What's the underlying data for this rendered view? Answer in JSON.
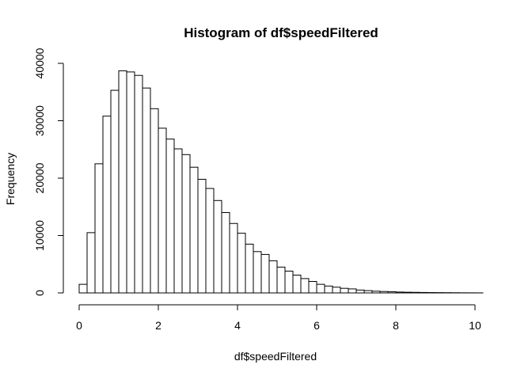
{
  "chart_data": {
    "type": "bar",
    "title": "Histogram of df$speedFiltered",
    "xlabel": "df$speedFiltered",
    "ylabel": "Frequency",
    "bin_width": 0.2,
    "bin_start": 0,
    "xlim": [
      0,
      10.2
    ],
    "ylim": [
      0,
      40000
    ],
    "x_ticks": [
      0,
      2,
      4,
      6,
      8,
      10
    ],
    "y_ticks": [
      0,
      10000,
      20000,
      30000,
      40000
    ],
    "values": [
      1500,
      10500,
      22500,
      30800,
      35300,
      38700,
      38500,
      37900,
      35700,
      32100,
      28700,
      26800,
      25100,
      24100,
      21900,
      19800,
      18200,
      16100,
      14000,
      12100,
      10400,
      8500,
      7200,
      6700,
      5600,
      4500,
      3800,
      3100,
      2500,
      2000,
      1500,
      1200,
      1000,
      800,
      700,
      500,
      400,
      300,
      250,
      200,
      150,
      120,
      100,
      80,
      60,
      50,
      40,
      30,
      20,
      15,
      10
    ],
    "grid": false
  }
}
